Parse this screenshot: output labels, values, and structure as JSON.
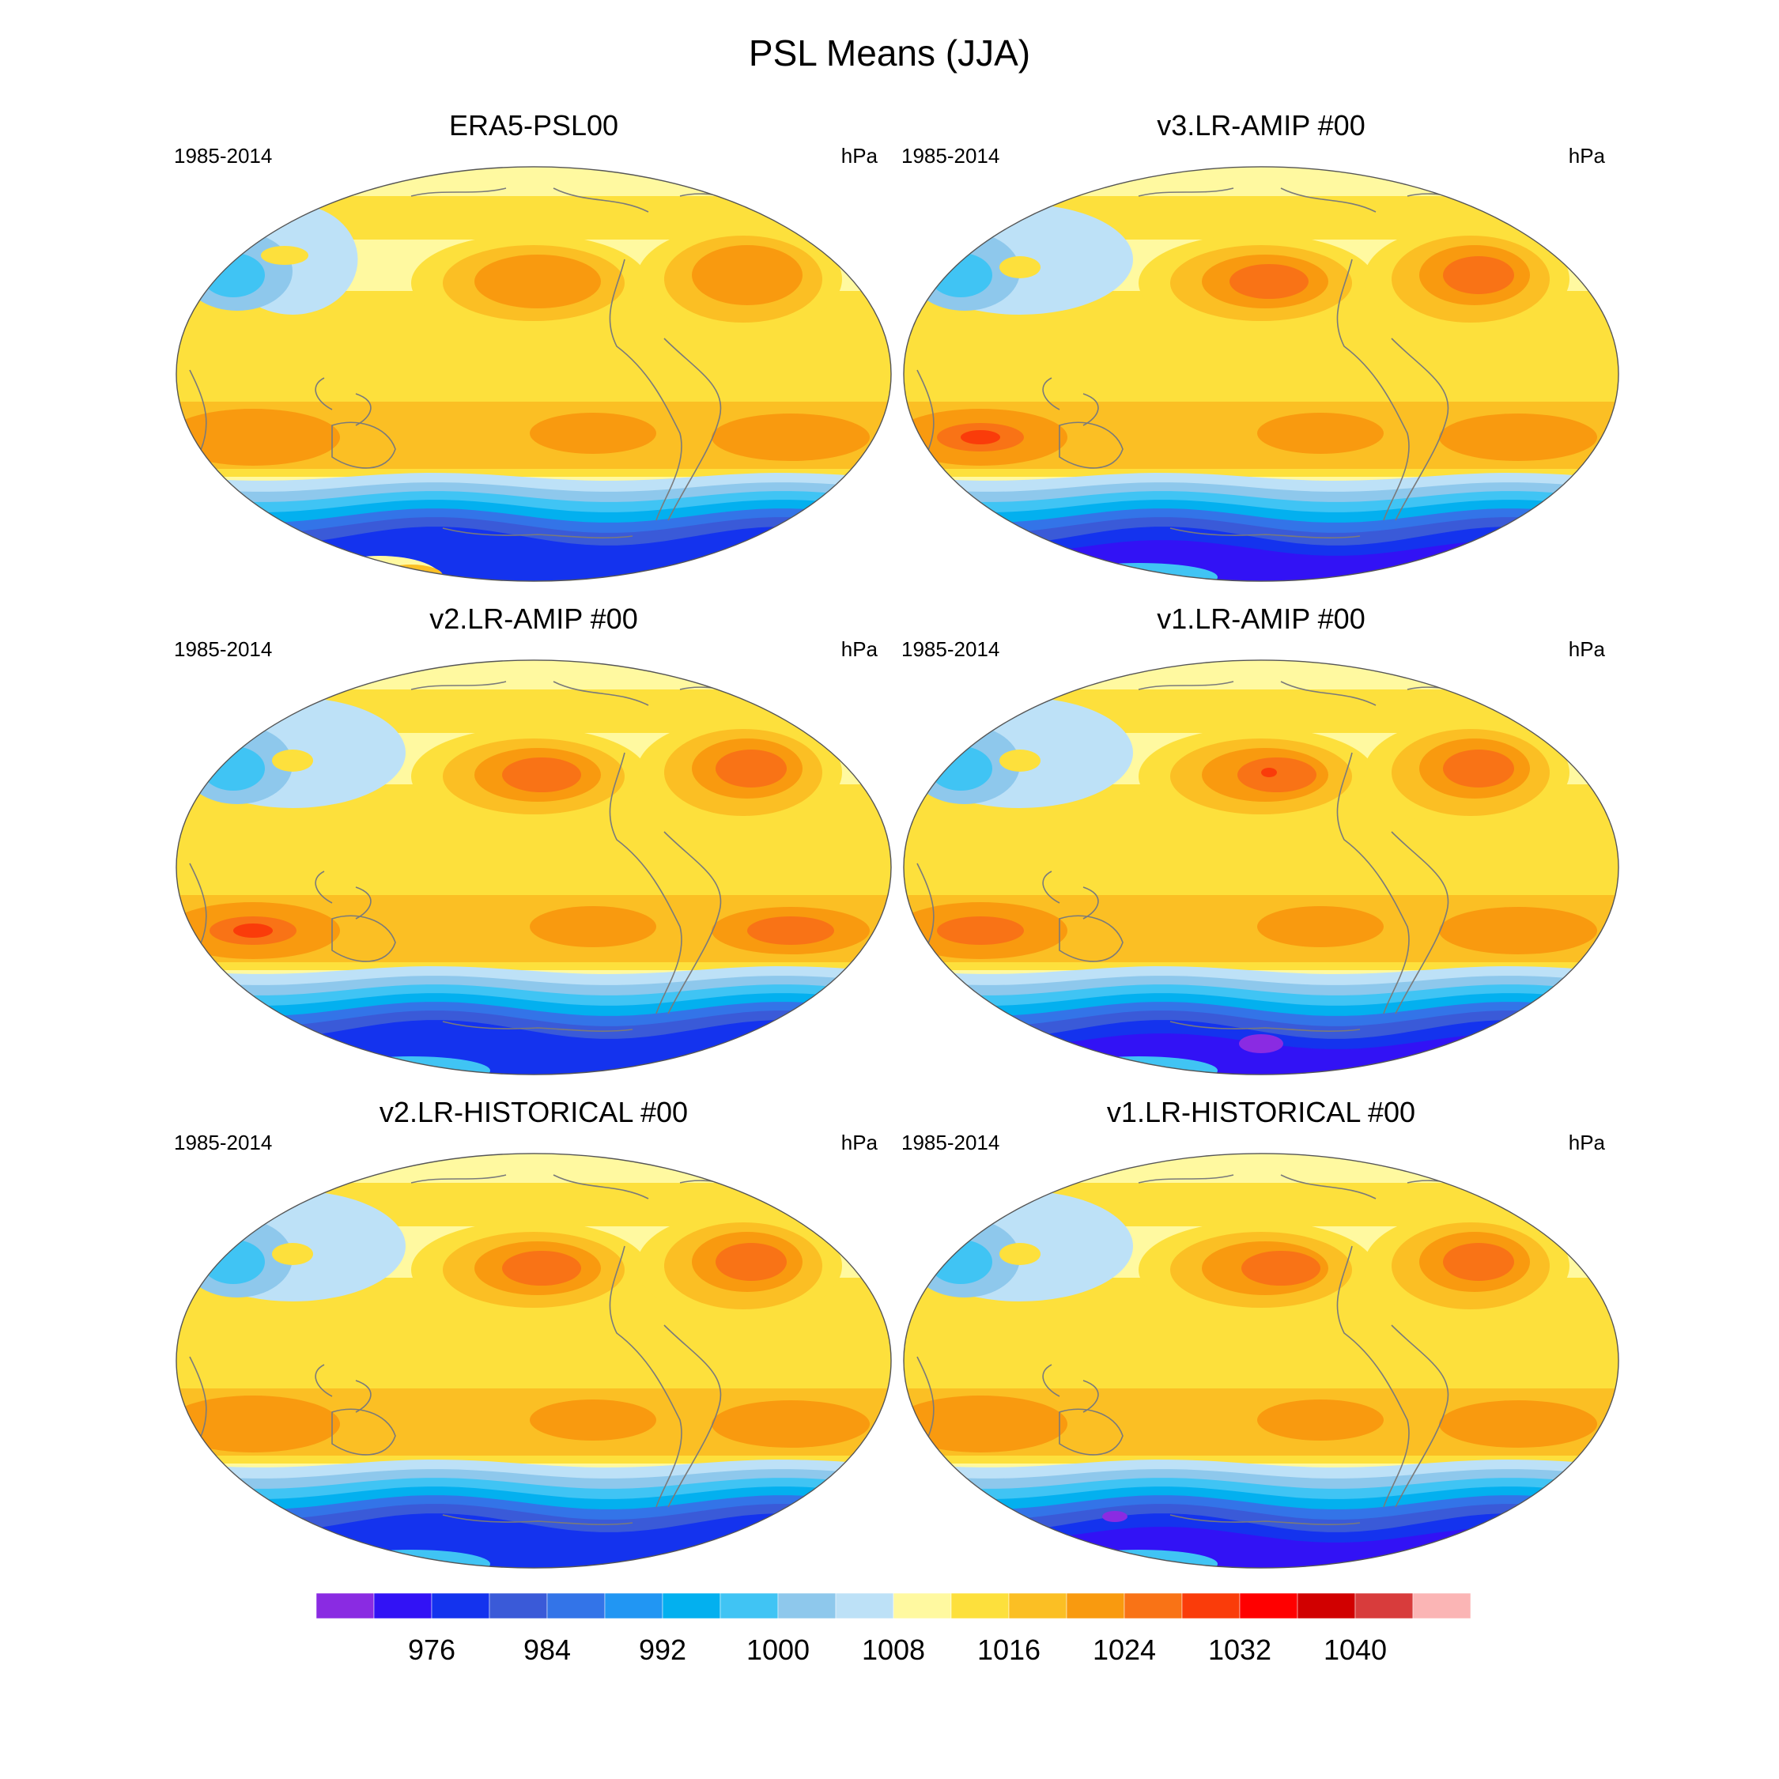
{
  "figure": {
    "title": "PSL Means (JJA)"
  },
  "chart_data": [
    {
      "type": "heatmap",
      "title": "ERA5-PSL00",
      "left_label": "1985-2014",
      "right_label": "hPa",
      "variant": 0
    },
    {
      "type": "heatmap",
      "title": "v3.LR-AMIP  #00",
      "left_label": "1985-2014",
      "right_label": "hPa",
      "variant": 1
    },
    {
      "type": "heatmap",
      "title": "v2.LR-AMIP  #00",
      "left_label": "1985-2014",
      "right_label": "hPa",
      "variant": 2
    },
    {
      "type": "heatmap",
      "title": "v1.LR-AMIP  #00",
      "left_label": "1985-2014",
      "right_label": "hPa",
      "variant": 3
    },
    {
      "type": "heatmap",
      "title": "v2.LR-HISTORICAL  #00",
      "left_label": "1985-2014",
      "right_label": "hPa",
      "variant": 4
    },
    {
      "type": "heatmap",
      "title": "v1.LR-HISTORICAL  #00",
      "left_label": "1985-2014",
      "right_label": "hPa",
      "variant": 5
    }
  ],
  "colorbar": {
    "colors": [
      "#8a2be2",
      "#3212f5",
      "#1433ee",
      "#3a5ad8",
      "#3374e8",
      "#2196f3",
      "#03b0ef",
      "#40c4f4",
      "#8ec8ec",
      "#bde1f7",
      "#fff9a0",
      "#fde03c",
      "#fbbf24",
      "#f99a0f",
      "#f97316",
      "#fa3c0a",
      "#ff0000",
      "#d10000",
      "#d83c3c",
      "#fbb5b5"
    ],
    "tick_labels": [
      "976",
      "984",
      "992",
      "1000",
      "1008",
      "1016",
      "1024",
      "1032",
      "1040"
    ]
  }
}
